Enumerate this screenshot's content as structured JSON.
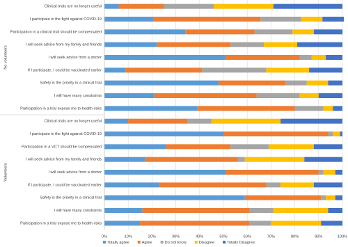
{
  "chart_data": {
    "type": "bar",
    "orientation": "horizontal",
    "stacked": true,
    "xlim": [
      0,
      100
    ],
    "xticks": [
      {
        "value": 0,
        "label": "0%"
      },
      {
        "value": 10,
        "label": "10%"
      },
      {
        "value": 20,
        "label": "20%"
      },
      {
        "value": 30,
        "label": "30%"
      },
      {
        "value": 40,
        "label": "40%"
      },
      {
        "value": 50,
        "label": "50%"
      },
      {
        "value": 60,
        "label": "60%"
      },
      {
        "value": 70,
        "label": "70%"
      },
      {
        "value": 80,
        "label": "80%"
      },
      {
        "value": 90,
        "label": "90%"
      },
      {
        "value": 100,
        "label": "100%"
      }
    ],
    "grid": true,
    "legend": "bottom",
    "series": [
      {
        "name": "Totally agree",
        "color": "#5b9bd5"
      },
      {
        "name": "Agree",
        "color": "#ed7d31"
      },
      {
        "name": "Do not know",
        "color": "#a5a5a5"
      },
      {
        "name": "Disagree",
        "color": "#ffc000"
      },
      {
        "name": "Totally Disagree",
        "color": "#4472c4"
      }
    ],
    "groups": [
      {
        "name": "No volunteers",
        "categories": [
          "Clinical trials are no longer useful",
          "I participate in the fight against COVID-19",
          "Participation in  a clinical trial should be compensated",
          "I will seek advice from my family and friends",
          "I will seek advice from a doctor",
          "If I participate, I could be vaccinated earlier",
          "Safety is the priority in a clinical trial",
          "I will have many constraints",
          "Participation in a trial expose me to health risks"
        ],
        "series_values": [
          [
            6,
            20.6,
            34,
            22,
            51,
            9,
            48,
            21,
            39
          ],
          [
            19,
            45,
            29,
            31,
            31,
            32,
            28,
            43,
            41
          ],
          [
            21,
            17,
            16,
            14,
            5,
            27,
            9,
            18,
            12
          ],
          [
            25,
            9,
            9,
            14,
            6,
            18,
            9,
            8,
            4
          ],
          [
            29,
            9,
            12,
            19,
            7,
            14,
            6,
            10,
            4
          ]
        ]
      },
      {
        "name": "Volunteers",
        "categories": [
          "Clinical trials are no longer useful",
          "I participate in the fight against COVID-19",
          "Participation in  a VCT should be compensated",
          "I will seek advice from my family and friends",
          "I will seek advice from a doctor",
          "If I participate, I could be vaccinated earlier",
          "Safety is the priority in a clinical trial",
          "I will have many constraints",
          "Participation in a trial expose me to health risks"
        ],
        "series_values": [
          [
            10,
            50,
            26,
            17,
            51,
            23,
            59,
            16,
            15
          ],
          [
            25,
            44,
            27,
            39,
            39,
            45,
            32,
            45,
            46
          ],
          [
            10,
            2,
            16,
            3,
            2,
            6,
            2,
            10,
            9
          ],
          [
            29,
            3,
            19,
            25,
            5,
            14,
            4,
            23,
            21
          ],
          [
            26,
            1,
            12,
            16,
            3,
            12,
            3,
            6,
            9
          ]
        ]
      }
    ]
  }
}
